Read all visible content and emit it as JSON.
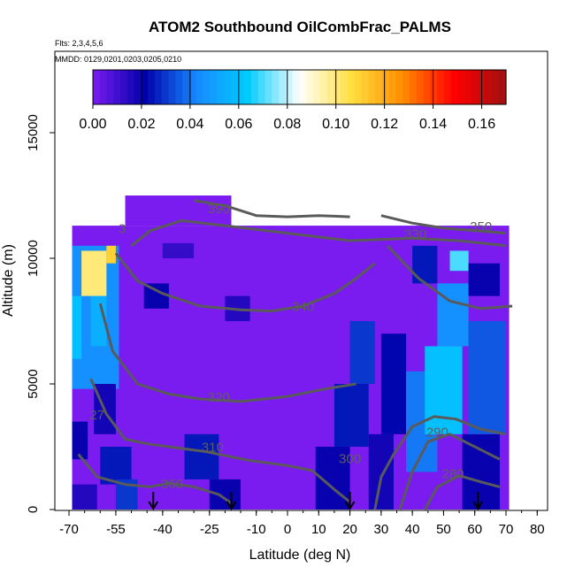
{
  "chart_data": {
    "type": "heatmap",
    "title": "ATOM2 Southbound OilCombFrac_PALMS",
    "flights_note": "Flts: 2,3,4,5,6",
    "dates_note": "MMDD: 0129,0201,0203,0205,0210",
    "xlabel": "Latitude (deg N)",
    "ylabel": "Altitude (m)",
    "xlim": [
      -72,
      85
    ],
    "ylim": [
      0,
      17800
    ],
    "x_ticks": [
      "-70",
      "-55",
      "-40",
      "-25",
      "-10",
      "0",
      "10",
      "20",
      "30",
      "40",
      "50",
      "60",
      "70",
      "80"
    ],
    "x_tick_values": [
      -70,
      -55,
      -40,
      -25,
      -10,
      0,
      10,
      20,
      30,
      40,
      50,
      60,
      70,
      80
    ],
    "y_ticks": [
      "0",
      "5000",
      "10000",
      "15000"
    ],
    "y_tick_values": [
      0,
      5000,
      10000,
      15000
    ],
    "colorbar": {
      "min": 0.0,
      "max": 0.17,
      "ticks": [
        "0.00",
        "0.02",
        "0.04",
        "0.06",
        "0.08",
        "0.10",
        "0.12",
        "0.14",
        "0.16"
      ],
      "tick_values": [
        0,
        0.02,
        0.04,
        0.06,
        0.08,
        0.1,
        0.12,
        0.14,
        0.16
      ],
      "colors": [
        "#7a1cf0",
        "#0000aa",
        "#1888ff",
        "#00ccff",
        "#ffffff",
        "#ffe040",
        "#ff8c00",
        "#ff0000",
        "#a01010"
      ]
    },
    "background_value": 0.0,
    "cells": [
      {
        "x0": -69,
        "x1": -54,
        "y0": 4800,
        "y1": 10500,
        "v": 0.045
      },
      {
        "x0": -66,
        "x1": -58,
        "y0": 8500,
        "y1": 10300,
        "v": 0.1
      },
      {
        "x0": -58,
        "x1": -55,
        "y0": 9800,
        "y1": 10500,
        "v": 0.11
      },
      {
        "x0": -69,
        "x1": -66,
        "y0": 6000,
        "y1": 8500,
        "v": 0.06
      },
      {
        "x0": -63,
        "x1": -58,
        "y0": 6500,
        "y1": 8500,
        "v": 0.055
      },
      {
        "x0": -69,
        "x1": -61,
        "y0": 0,
        "y1": 1000,
        "v": 0.015
      },
      {
        "x0": -69,
        "x1": -64,
        "y0": 2000,
        "y1": 3500,
        "v": 0.02
      },
      {
        "x0": -62,
        "x1": -55,
        "y0": 3000,
        "y1": 5000,
        "v": 0.018
      },
      {
        "x0": -60,
        "x1": -50,
        "y0": 1000,
        "y1": 2500,
        "v": 0.025
      },
      {
        "x0": -55,
        "x1": -48,
        "y0": 0,
        "y1": 1200,
        "v": 0.03
      },
      {
        "x0": -33,
        "x1": -22,
        "y0": 1200,
        "y1": 3000,
        "v": 0.025
      },
      {
        "x0": -25,
        "x1": -15,
        "y0": 0,
        "y1": 1200,
        "v": 0.02
      },
      {
        "x0": -46,
        "x1": -38,
        "y0": 8000,
        "y1": 9000,
        "v": 0.02
      },
      {
        "x0": -20,
        "x1": -12,
        "y0": 7500,
        "y1": 8500,
        "v": 0.015
      },
      {
        "x0": -40,
        "x1": -30,
        "y0": 10000,
        "y1": 10600,
        "v": 0.012
      },
      {
        "x0": 9,
        "x1": 20,
        "y0": 0,
        "y1": 2500,
        "v": 0.02
      },
      {
        "x0": 15,
        "x1": 26,
        "y0": 2500,
        "y1": 5000,
        "v": 0.025
      },
      {
        "x0": 20,
        "x1": 28,
        "y0": 5000,
        "y1": 7500,
        "v": 0.03
      },
      {
        "x0": 26,
        "x1": 34,
        "y0": 0,
        "y1": 3000,
        "v": 0.018
      },
      {
        "x0": 30,
        "x1": 38,
        "y0": 3000,
        "y1": 7000,
        "v": 0.022
      },
      {
        "x0": 38,
        "x1": 48,
        "y0": 1500,
        "y1": 5500,
        "v": 0.04
      },
      {
        "x0": 44,
        "x1": 56,
        "y0": 3000,
        "y1": 6500,
        "v": 0.06
      },
      {
        "x0": 48,
        "x1": 58,
        "y0": 6500,
        "y1": 9000,
        "v": 0.045
      },
      {
        "x0": 56,
        "x1": 68,
        "y0": 0,
        "y1": 3000,
        "v": 0.02
      },
      {
        "x0": 58,
        "x1": 70,
        "y0": 3000,
        "y1": 7500,
        "v": 0.035
      },
      {
        "x0": 40,
        "x1": 48,
        "y0": 9000,
        "y1": 10500,
        "v": 0.025
      },
      {
        "x0": 52,
        "x1": 58,
        "y0": 9500,
        "y1": 10300,
        "v": 0.07
      },
      {
        "x0": 58,
        "x1": 68,
        "y0": 8500,
        "y1": 9800,
        "v": 0.02
      }
    ],
    "contours": [
      {
        "label": "360",
        "label_at": [
          -37,
          850
        ],
        "points": [
          [
            -67,
            2200
          ],
          [
            -61,
            1300
          ],
          [
            -52,
            1000
          ],
          [
            -44,
            900
          ],
          [
            -38,
            1050
          ],
          [
            -30,
            900
          ],
          [
            -22,
            600
          ],
          [
            -18,
            250
          ]
        ]
      },
      {
        "label": "310",
        "label_at": [
          -24,
          2300
        ],
        "points": [
          [
            -63,
            5200
          ],
          [
            -58,
            3800
          ],
          [
            -52,
            2800
          ],
          [
            -44,
            2600
          ],
          [
            -38,
            2500
          ],
          [
            -26,
            2300
          ],
          [
            -12,
            1950
          ],
          [
            0,
            1750
          ],
          [
            8,
            1550
          ],
          [
            15,
            800
          ],
          [
            20,
            300
          ]
        ]
      },
      {
        "label": "320",
        "label_at": [
          -22,
          4300
        ],
        "points": [
          [
            -60,
            8200
          ],
          [
            -56,
            6300
          ],
          [
            -48,
            5000
          ],
          [
            -38,
            4600
          ],
          [
            -28,
            4400
          ],
          [
            -15,
            4300
          ],
          [
            0,
            4500
          ],
          [
            12,
            4800
          ],
          [
            22,
            5000
          ]
        ]
      },
      {
        "label": "340",
        "label_at": [
          5,
          7900
        ],
        "points": [
          [
            -55,
            10200
          ],
          [
            -48,
            9100
          ],
          [
            -40,
            8600
          ],
          [
            -28,
            8100
          ],
          [
            -15,
            7950
          ],
          [
            -5,
            7900
          ],
          [
            5,
            8100
          ],
          [
            15,
            8600
          ],
          [
            22,
            9200
          ],
          [
            28,
            9800
          ]
        ]
      },
      {
        "label": "300",
        "label_at": [
          20,
          1850
        ],
        "points": [
          [
            28,
            0
          ],
          [
            30,
            1300
          ],
          [
            34,
            2200
          ],
          [
            40,
            3300
          ],
          [
            47,
            3700
          ],
          [
            54,
            3600
          ],
          [
            62,
            3200
          ],
          [
            70,
            3000
          ]
        ]
      },
      {
        "label": "290",
        "label_at": [
          48,
          2900
        ],
        "points": [
          [
            36,
            0
          ],
          [
            40,
            1500
          ],
          [
            45,
            2700
          ],
          [
            52,
            3000
          ],
          [
            60,
            2500
          ],
          [
            68,
            2000
          ]
        ]
      },
      {
        "label": "280",
        "label_at": [
          53,
          1250
        ],
        "points": [
          [
            44,
            0
          ],
          [
            48,
            900
          ],
          [
            55,
            1350
          ],
          [
            62,
            1100
          ],
          [
            68,
            900
          ]
        ]
      },
      {
        "label": "350",
        "label_at": [
          62,
          11100
        ],
        "points": [
          [
            30,
            11700
          ],
          [
            40,
            11400
          ],
          [
            50,
            11200
          ],
          [
            60,
            11100
          ],
          [
            70,
            11000
          ]
        ]
      },
      {
        "label": "330",
        "label_at": [
          41,
          10800
        ],
        "points": [
          [
            -50,
            10500
          ],
          [
            -44,
            11100
          ],
          [
            -34,
            11500
          ],
          [
            -20,
            11300
          ],
          [
            0,
            11000
          ],
          [
            20,
            10700
          ],
          [
            40,
            10800
          ],
          [
            55,
            10700
          ],
          [
            70,
            10500
          ]
        ]
      },
      {
        "label": "390",
        "label_at": [
          -22,
          11800
        ],
        "points": [
          [
            -30,
            12300
          ],
          [
            -20,
            12100
          ],
          [
            -10,
            11700
          ],
          [
            0,
            11650
          ],
          [
            10,
            11700
          ],
          [
            20,
            11650
          ]
        ]
      },
      {
        "label": "",
        "label_at": [
          0,
          0
        ],
        "points": [
          [
            32,
            10500
          ],
          [
            42,
            9200
          ],
          [
            52,
            8300
          ],
          [
            62,
            8000
          ],
          [
            72,
            8100
          ]
        ]
      }
    ],
    "contour_label_side": [
      {
        "label": "27",
        "label_at": [
          -61,
          3600
        ]
      },
      {
        "label": "3",
        "label_at": [
          -53,
          11000
        ]
      }
    ],
    "arrows_x": [
      -43,
      -18,
      20,
      61
    ],
    "arrows_tip": 0,
    "arrows_tail": 700
  }
}
